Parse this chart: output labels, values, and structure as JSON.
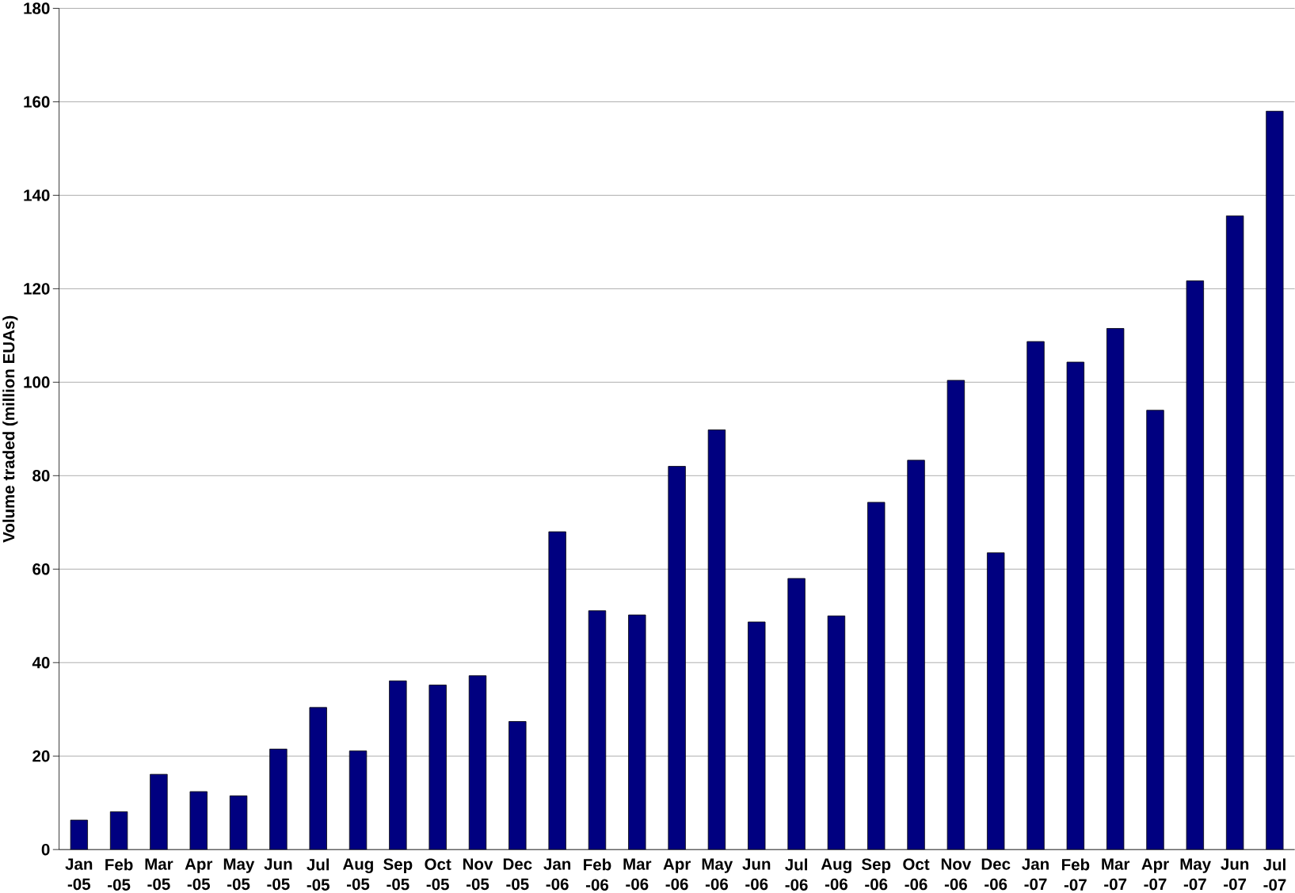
{
  "chart_data": {
    "type": "bar",
    "ylabel": "Volume traded (million EUAs)",
    "categories": [
      "Jan -05",
      "Feb -05",
      "Mar -05",
      "Apr -05",
      "May -05",
      "Jun -05",
      "Jul -05",
      "Aug -05",
      "Sep -05",
      "Oct -05",
      "Nov -05",
      "Dec -05",
      "Jan -06",
      "Feb -06",
      "Mar -06",
      "Apr -06",
      "May -06",
      "Jun -06",
      "Jul -06",
      "Aug -06",
      "Sep -06",
      "Oct -06",
      "Nov -06",
      "Dec -06",
      "Jan -07",
      "Feb -07",
      "Mar -07",
      "Apr -07",
      "May -07",
      "Jun -07",
      "Jul -07"
    ],
    "values": [
      6.3,
      8.1,
      16.1,
      12.4,
      11.5,
      21.5,
      30.4,
      21.1,
      36.1,
      35.2,
      37.2,
      27.4,
      68,
      51.1,
      50.2,
      82,
      89.8,
      48.7,
      58,
      50,
      74.3,
      83.3,
      100.4,
      63.5,
      108.7,
      104.3,
      111.5,
      94,
      121.7,
      135.6,
      158
    ],
    "color": "#000080",
    "ylim": [
      0,
      180
    ],
    "yticks": [
      0,
      20,
      40,
      60,
      80,
      100,
      120,
      140,
      160,
      180
    ],
    "grid": "y"
  }
}
